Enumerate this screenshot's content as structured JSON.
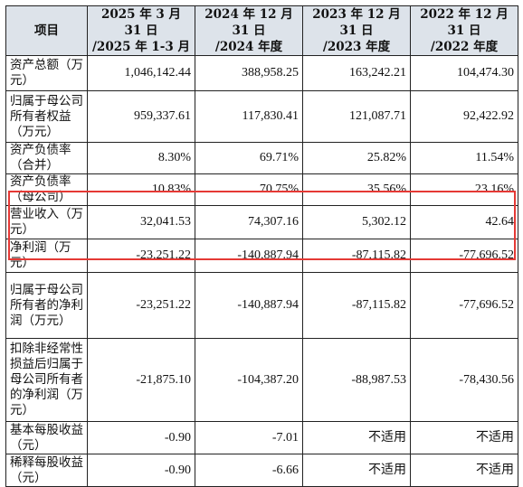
{
  "table": {
    "header": [
      "项目",
      "2025 年 3 月 31 日\n/2025 年 1-3 月",
      "2024 年 12 月 31 日\n/2024 年度",
      "2023 年 12 月 31 日\n/2023 年度",
      "2022 年 12 月 31 日\n/2022 年度"
    ],
    "rows": [
      {
        "label": "资产总额（万元）",
        "values": [
          "1,046,142.44",
          "388,958.25",
          "163,242.21",
          "104,474.30"
        ]
      },
      {
        "label": "归属于母公司所有者权益（万元）",
        "values": [
          "959,337.61",
          "117,830.41",
          "121,087.71",
          "92,422.92"
        ]
      },
      {
        "label": "资产负债率（合并）",
        "values": [
          "8.30%",
          "69.71%",
          "25.82%",
          "11.54%"
        ]
      },
      {
        "label": "资产负债率（母公司）",
        "values": [
          "10.83%",
          "70.75%",
          "35.56%",
          "23.16%"
        ]
      },
      {
        "label": "营业收入（万元）",
        "values": [
          "32,041.53",
          "74,307.16",
          "5,302.12",
          "42.64"
        ]
      },
      {
        "label": "净利润（万元）",
        "values": [
          "-23,251.22",
          "-140,887.94",
          "-87,115.82",
          "-77,696.52"
        ]
      },
      {
        "label": "归属于母公司所有者的净利润（万元）",
        "values": [
          "-23,251.22",
          "-140,887.94",
          "-87,115.82",
          "-77,696.52"
        ]
      },
      {
        "label": "扣除非经常性损益后归属于母公司所有者的净利润（万元）",
        "values": [
          "-21,875.10",
          "-104,387.20",
          "-88,987.53",
          "-78,430.56"
        ]
      },
      {
        "label": "基本每股收益（元）",
        "values": [
          "-0.90",
          "-7.01",
          "不适用",
          "不适用"
        ]
      },
      {
        "label": "稀释每股收益（元）",
        "values": [
          "-0.90",
          "-6.66",
          "不适用",
          "不适用"
        ]
      }
    ]
  },
  "highlight_color": "#e53935",
  "header_bg": "#dde3ea"
}
